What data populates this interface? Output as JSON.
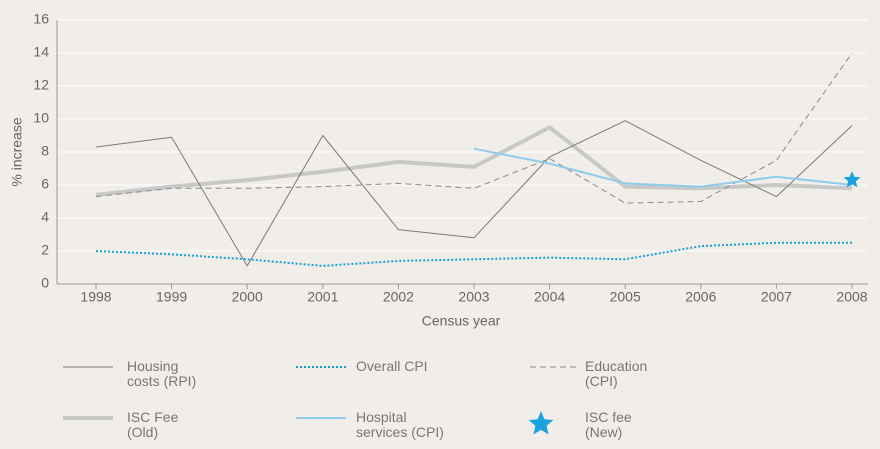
{
  "chart_data": {
    "type": "line",
    "x_label": "Census year",
    "y_label": "% increase",
    "categories": [
      "1998",
      "1999",
      "2000",
      "2001",
      "2002",
      "2003",
      "2004",
      "2005",
      "2006",
      "2007",
      "2008"
    ],
    "ylim": [
      0,
      16
    ],
    "yticks": [
      0,
      2,
      4,
      6,
      8,
      10,
      12,
      14,
      16
    ],
    "grid": true,
    "series": [
      {
        "name": "Housing costs (RPI)",
        "color": "#7a7a7a",
        "style": "solid",
        "width": 1,
        "values": [
          8.3,
          8.9,
          1.1,
          9.0,
          3.3,
          2.8,
          7.7,
          9.9,
          7.5,
          5.3,
          9.6
        ]
      },
      {
        "name": "Overall CPI",
        "color": "#1a9fd6",
        "style": "dotted",
        "width": 2,
        "values": [
          2.0,
          1.8,
          1.5,
          1.1,
          1.4,
          1.5,
          1.6,
          1.5,
          2.3,
          2.5,
          2.5
        ]
      },
      {
        "name": "Education (CPI)",
        "color": "#8a8a8a",
        "style": "dashed",
        "width": 1,
        "values": [
          5.3,
          5.8,
          5.8,
          5.9,
          6.1,
          5.8,
          7.6,
          4.9,
          5.0,
          7.5,
          14.0
        ]
      },
      {
        "name": "ISC Fee (Old)",
        "color": "#c8c8c8",
        "style": "solid",
        "width": 4,
        "values": [
          5.4,
          5.9,
          6.3,
          6.8,
          7.4,
          7.1,
          9.5,
          5.9,
          5.8,
          6.0,
          5.8
        ]
      },
      {
        "name": "Hospital services (CPI)",
        "color": "#8fcbea",
        "style": "solid",
        "width": 2,
        "values": [
          null,
          null,
          null,
          null,
          null,
          8.2,
          7.3,
          6.1,
          5.9,
          6.5,
          6.0
        ]
      },
      {
        "name": "ISC fee (New)",
        "color": "#1aa3dc",
        "style": "star",
        "width": 0,
        "values": [
          null,
          null,
          null,
          null,
          null,
          null,
          null,
          null,
          null,
          null,
          6.3
        ]
      }
    ]
  }
}
